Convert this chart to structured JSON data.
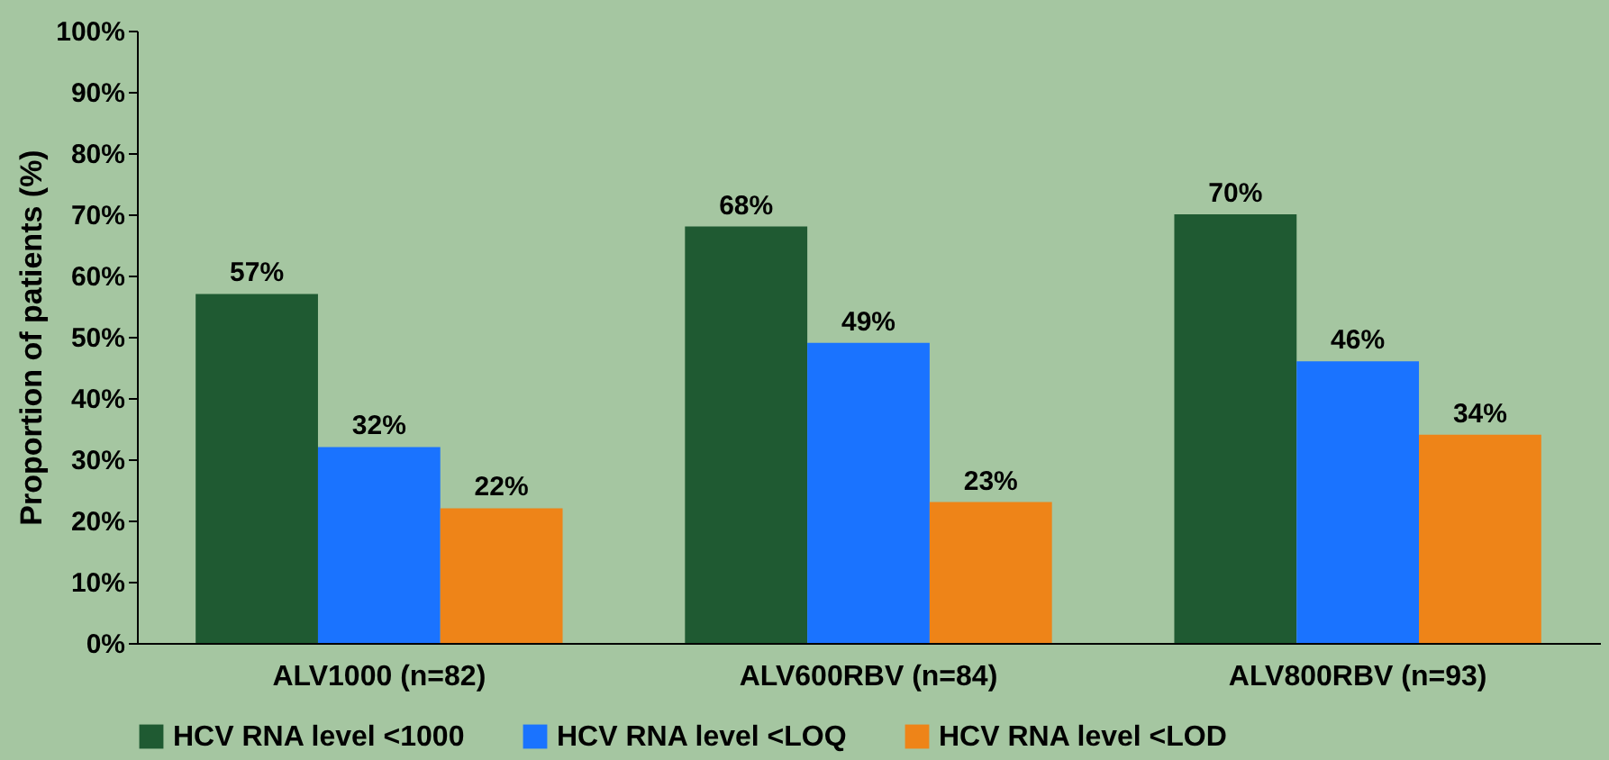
{
  "chart_data": {
    "type": "bar",
    "ylabel": "Proportion of patients (%)",
    "categories": [
      "ALV1000 (n=82)",
      "ALV600RBV (n=84)",
      "ALV800RBV (n=93)"
    ],
    "series": [
      {
        "name": "HCV RNA level <1000",
        "color": "#1f5a32",
        "values": [
          57,
          68,
          70
        ],
        "value_labels": [
          "57%",
          "68%",
          "70%"
        ]
      },
      {
        "name": "HCV RNA level <LOQ",
        "color": "#1a73ff",
        "values": [
          32,
          49,
          46
        ],
        "value_labels": [
          "32%",
          "49%",
          "46%"
        ]
      },
      {
        "name": "HCV RNA level <LOD",
        "color": "#ee8418",
        "values": [
          22,
          23,
          34
        ],
        "value_labels": [
          "22%",
          "23%",
          "34%"
        ]
      }
    ],
    "ylim": [
      0,
      100
    ],
    "yticks": [
      {
        "value": 0,
        "label": "0%"
      },
      {
        "value": 10,
        "label": "10%"
      },
      {
        "value": 20,
        "label": "20%"
      },
      {
        "value": 30,
        "label": "30%"
      },
      {
        "value": 40,
        "label": "40%"
      },
      {
        "value": 50,
        "label": "50%"
      },
      {
        "value": 60,
        "label": "60%"
      },
      {
        "value": 70,
        "label": "70%"
      },
      {
        "value": 80,
        "label": "80%"
      },
      {
        "value": 90,
        "label": "90%"
      },
      {
        "value": 100,
        "label": "100%"
      }
    ],
    "grid": false,
    "legend": "bottom"
  }
}
